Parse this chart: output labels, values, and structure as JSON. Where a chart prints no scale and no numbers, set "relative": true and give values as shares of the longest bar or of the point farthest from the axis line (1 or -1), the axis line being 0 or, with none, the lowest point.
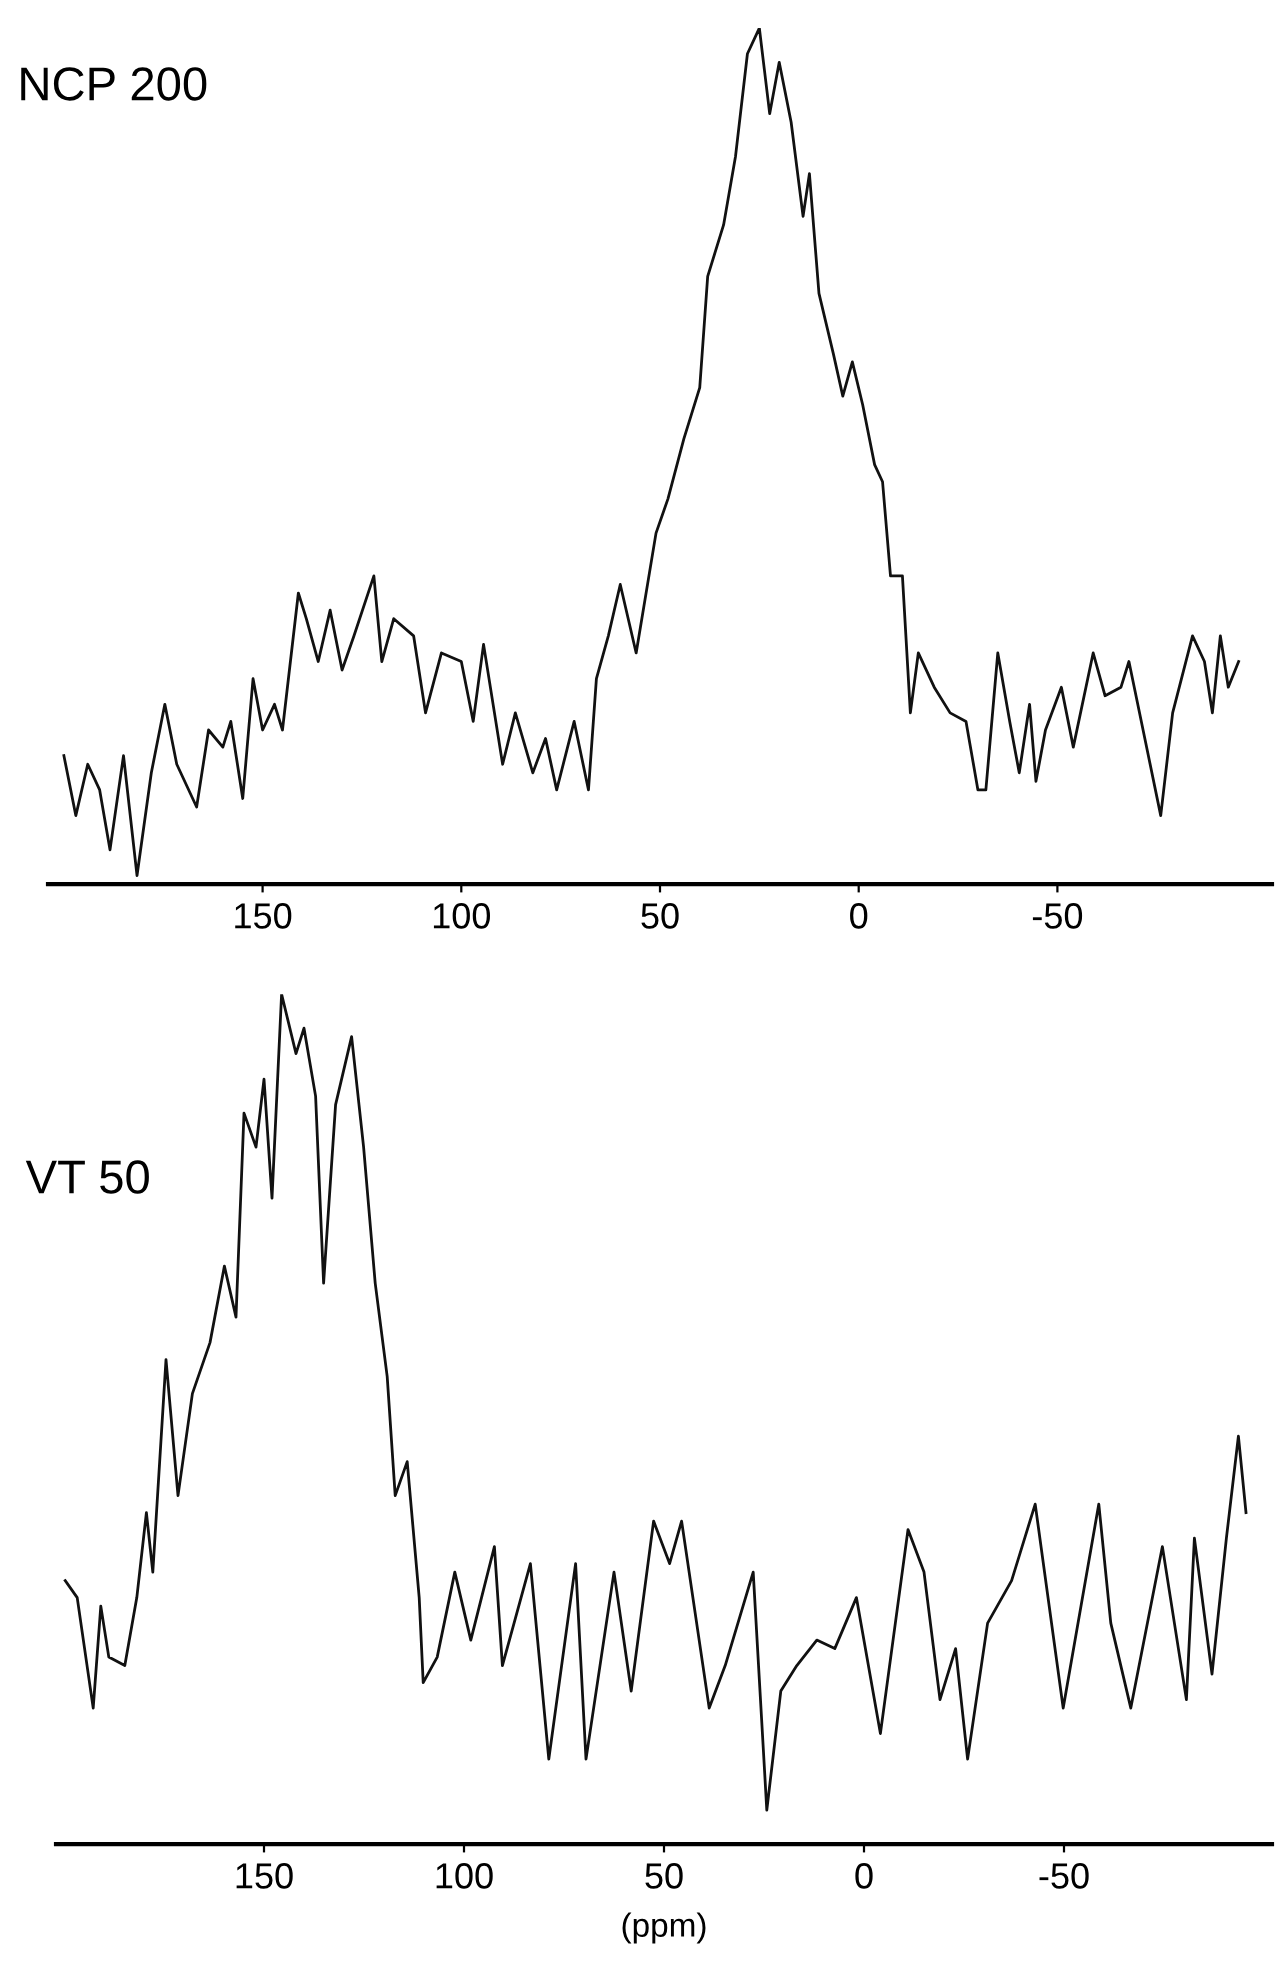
{
  "chart_data": [
    {
      "type": "line",
      "title": "NCP 200",
      "relative": true,
      "xlim": [
        204,
        -104
      ],
      "xticks": [
        150,
        100,
        50,
        0,
        {
          "value": -50,
          "label": "-50"
        }
      ],
      "tick_labels": "x",
      "grid": false,
      "legend": false,
      "series": [
        {
          "color": "#111111",
          "x": [
            200,
            197,
            194,
            191,
            188.4,
            185,
            181.6,
            178,
            174.6,
            171.6,
            166.6,
            163.6,
            160,
            158,
            155,
            152.4,
            150,
            147,
            145,
            141,
            139,
            136,
            133,
            130,
            127,
            122,
            120,
            117,
            112,
            109,
            105,
            100,
            97,
            94.4,
            89.6,
            86.4,
            82,
            78.8,
            76,
            71.6,
            68,
            66,
            63,
            60,
            56,
            51,
            48,
            44,
            40,
            38,
            34,
            31,
            28,
            25,
            22.4,
            20,
            17,
            14,
            12.4,
            10,
            6.4,
            4,
            1.6,
            -1,
            -4,
            -6,
            -8,
            -11,
            -13,
            -15,
            -19,
            -23,
            -27,
            -30,
            -32,
            -35,
            -38,
            -40.4,
            -43,
            -44.6,
            -47,
            -51,
            -54,
            -59,
            -62,
            -66,
            -68,
            -72,
            -76,
            -79,
            -84,
            -87,
            -89,
            -91,
            -93,
            -95.6
          ],
          "values": [
            0.15,
            0.08,
            0.14,
            0.11,
            0.04,
            0.15,
            0.01,
            0.13,
            0.21,
            0.14,
            0.09,
            0.18,
            0.16,
            0.19,
            0.1,
            0.24,
            0.18,
            0.21,
            0.18,
            0.34,
            0.31,
            0.26,
            0.32,
            0.25,
            0.29,
            0.36,
            0.26,
            0.31,
            0.29,
            0.2,
            0.27,
            0.26,
            0.19,
            0.28,
            0.14,
            0.2,
            0.13,
            0.17,
            0.11,
            0.19,
            0.11,
            0.24,
            0.29,
            0.35,
            0.27,
            0.41,
            0.45,
            0.52,
            0.58,
            0.71,
            0.77,
            0.85,
            0.97,
            1,
            0.9,
            0.96,
            0.89,
            0.78,
            0.83,
            0.69,
            0.62,
            0.57,
            0.61,
            0.56,
            0.49,
            0.47,
            0.36,
            0.36,
            0.2,
            0.27,
            0.23,
            0.2,
            0.19,
            0.11,
            0.11,
            0.27,
            0.19,
            0.13,
            0.21,
            0.12,
            0.18,
            0.23,
            0.16,
            0.27,
            0.22,
            0.23,
            0.26,
            0.17,
            0.08,
            0.2,
            0.29,
            0.26,
            0.2,
            0.29,
            0.23,
            0.26
          ]
        }
      ]
    },
    {
      "type": "line",
      "title": "VT 50",
      "xlabel": "(ppm)",
      "relative": true,
      "xlim": [
        202,
        -102
      ],
      "xticks": [
        150,
        100,
        50,
        0,
        {
          "value": -50,
          "label": "-50"
        }
      ],
      "tick_labels": "x",
      "grid": false,
      "legend": false,
      "series": [
        {
          "color": "#111111",
          "x": [
            199.7,
            196.7,
            192.7,
            190.8,
            188.8,
            184.8,
            181.8,
            179.4,
            177.8,
            174.5,
            171.5,
            167.9,
            163.5,
            159.9,
            157.0,
            155.0,
            152.0,
            150.0,
            148.0,
            145.6,
            142.0,
            140.0,
            137.1,
            135.1,
            132.1,
            128.1,
            125.1,
            122.2,
            119.2,
            117.2,
            114.2,
            111.2,
            110.2,
            106.7,
            102.3,
            98.3,
            92.4,
            90.4,
            83.4,
            78.8,
            72.1,
            69.5,
            62.5,
            58.2,
            52.6,
            48.6,
            45.6,
            38.7,
            34.7,
            27.7,
            24.3,
            20.8,
            16.8,
            11.8,
            7.3,
            1.9,
            -4.1,
            -11.0,
            -15.0,
            -19.0,
            -22.9,
            -25.9,
            -30.9,
            -36.9,
            -42.8,
            -49.8,
            -58.7,
            -61.7,
            -66.7,
            -74.6,
            -80.6,
            -82.6,
            -87.0,
            -90.6,
            -93.6,
            -95.5
          ],
          "values": [
            0.31,
            0.29,
            0.16,
            0.28,
            0.22,
            0.21,
            0.29,
            0.39,
            0.32,
            0.57,
            0.41,
            0.53,
            0.59,
            0.68,
            0.62,
            0.86,
            0.82,
            0.9,
            0.76,
            1.0,
            0.93,
            0.96,
            0.88,
            0.66,
            0.87,
            0.95,
            0.82,
            0.66,
            0.55,
            0.41,
            0.45,
            0.29,
            0.19,
            0.22,
            0.32,
            0.24,
            0.35,
            0.21,
            0.33,
            0.1,
            0.33,
            0.1,
            0.32,
            0.18,
            0.38,
            0.33,
            0.38,
            0.16,
            0.21,
            0.32,
            0.04,
            0.18,
            0.21,
            0.24,
            0.23,
            0.29,
            0.13,
            0.37,
            0.32,
            0.17,
            0.23,
            0.1,
            0.26,
            0.31,
            0.4,
            0.16,
            0.4,
            0.26,
            0.16,
            0.35,
            0.17,
            0.36,
            0.2,
            0.36,
            0.48,
            0.39
          ]
        }
      ]
    }
  ]
}
